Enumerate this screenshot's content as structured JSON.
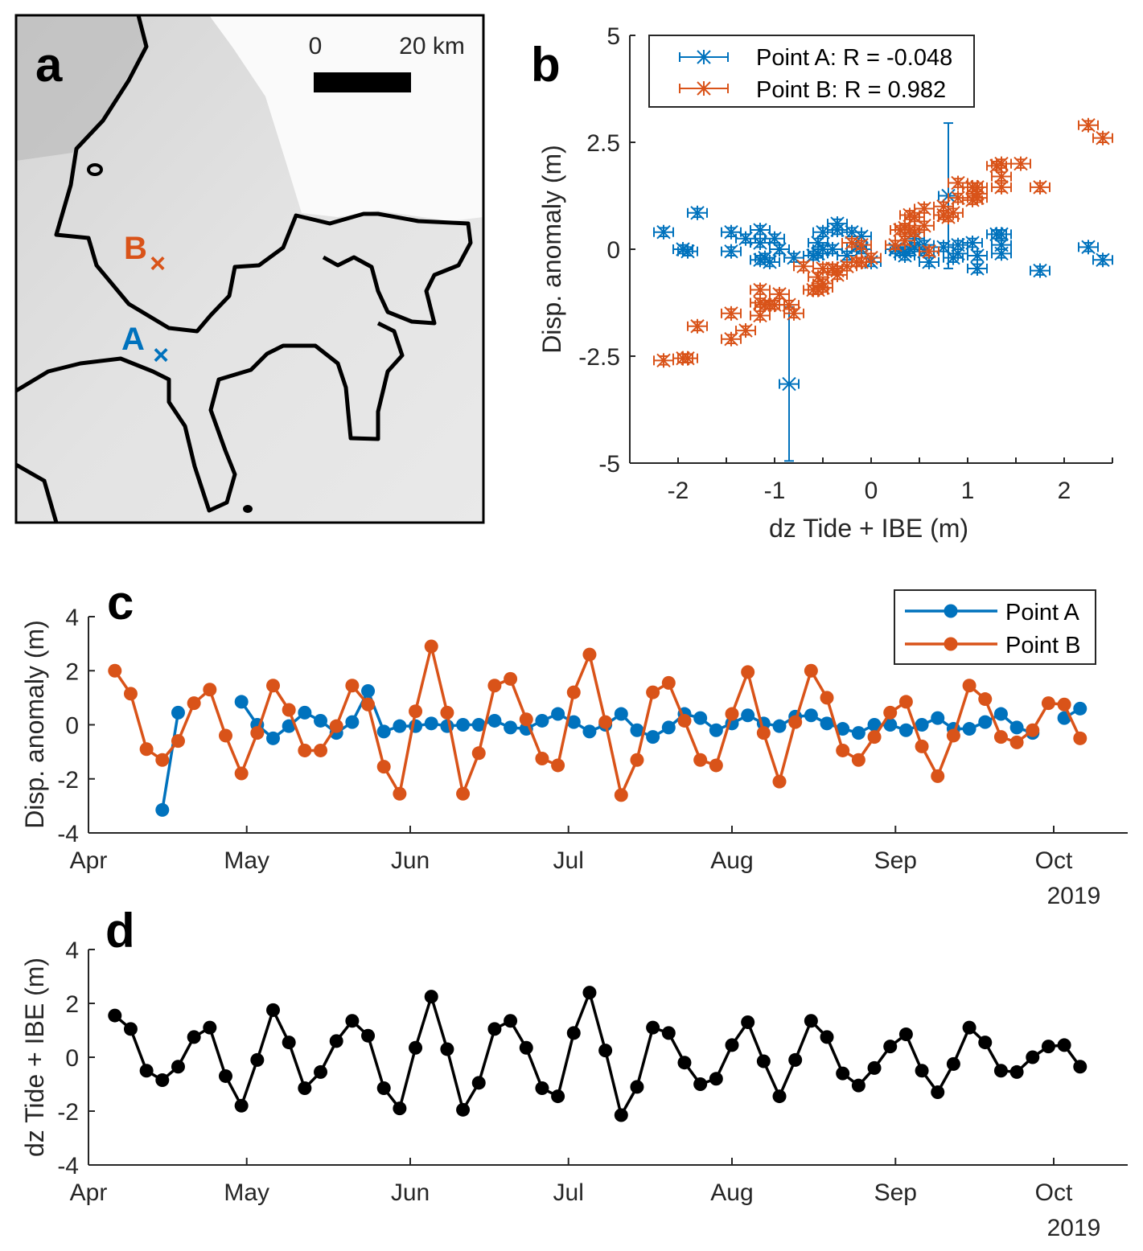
{
  "colors": {
    "point_a": "#0072BD",
    "point_b": "#D95319",
    "tide": "#000000",
    "axis": "#262626"
  },
  "panel_a": {
    "label": "a",
    "scale_bar": {
      "start": "0",
      "end": "20 km"
    },
    "markers": [
      {
        "label": "B",
        "color": "#D95319"
      },
      {
        "label": "A",
        "color": "#0072BD"
      }
    ]
  },
  "chart_data": [
    {
      "panel": "b",
      "type": "scatter",
      "xlabel": "dz Tide + IBE (m)",
      "ylabel": "Disp. anomaly (m)",
      "xlim": [
        -2.5,
        2.5
      ],
      "ylim": [
        -5,
        5
      ],
      "xticks": [
        -2,
        -1,
        0,
        1,
        2
      ],
      "xtick_labels": [
        "-2",
        "-1",
        "0",
        "1",
        "2"
      ],
      "yticks": [
        5,
        2.5,
        0,
        -2.5,
        -5
      ],
      "ytick_labels": [
        "5",
        "2.5",
        "0",
        "-2.5",
        "-5"
      ],
      "legend": "top-left",
      "error_bars": {
        "x": 0.1,
        "y": 0.1,
        "large_y": [
          {
            "series": 0,
            "index": 3,
            "y": 1.8
          },
          {
            "series": 0,
            "index": 16,
            "y": 1.7
          }
        ]
      },
      "x": [
        1.55,
        1.05,
        -0.5,
        -0.85,
        -0.35,
        0.75,
        1.1,
        -0.7,
        -1.8,
        -0.1,
        1.75,
        0.55,
        -1.15,
        -0.55,
        0.6,
        1.35,
        0.8,
        -1.15,
        -1.9,
        0.35,
        2.25,
        0.3,
        -1.95,
        -0.95,
        1.05,
        1.35,
        0.35,
        -1.15,
        -1.45,
        0.9,
        2.4,
        0.25,
        -2.15,
        -1.1,
        1.1,
        0.9,
        -0.2,
        -1.0,
        -0.8,
        0.45,
        1.3,
        -0.15,
        -1.45,
        -0.1,
        1.35,
        0.75,
        -0.6,
        -1.05,
        -0.4,
        0.4,
        0.85,
        -0.5,
        -1.3,
        -0.25,
        1.1,
        0.55,
        -0.5,
        -0.55,
        0.0,
        0.4,
        0.45,
        -0.35
      ],
      "series": [
        {
          "name": "Point A: R = -0.048",
          "color": "#0072BD",
          "y": [
            null,
            null,
            null,
            -3.15,
            0.45,
            null,
            null,
            null,
            0.85,
            0.0,
            -0.5,
            -0.05,
            0.45,
            0.15,
            -0.3,
            0.1,
            1.25,
            -0.25,
            -0.05,
            -0.05,
            0.05,
            -0.05,
            0.0,
            0.0,
            0.15,
            -0.1,
            -0.15,
            0.15,
            0.4,
            0.1,
            -0.25,
            0.0,
            0.4,
            -0.2,
            -0.45,
            -0.1,
            0.4,
            0.25,
            -0.2,
            0.05,
            0.35,
            0.05,
            -0.05,
            0.3,
            0.35,
            0.05,
            -0.15,
            -0.3,
            0.0,
            0.0,
            -0.2,
            0.0,
            0.25,
            -0.15,
            -0.15,
            0.1,
            0.4,
            -0.1,
            -0.3,
            null,
            0.25,
            0.6
          ]
        },
        {
          "name": "Point B: R = 0.982",
          "color": "#D95319",
          "y": [
            2.0,
            1.15,
            -0.9,
            -1.3,
            -0.6,
            0.8,
            1.3,
            -0.4,
            -1.8,
            -0.3,
            1.45,
            0.55,
            -0.95,
            -0.95,
            -0.05,
            1.45,
            0.75,
            -1.55,
            -2.55,
            0.5,
            2.9,
            0.45,
            -2.55,
            -1.05,
            1.45,
            1.7,
            0.2,
            -1.25,
            -1.5,
            1.2,
            2.6,
            0.1,
            -2.6,
            -1.3,
            1.2,
            1.55,
            0.15,
            -1.3,
            -1.5,
            0.4,
            1.95,
            -0.3,
            -2.1,
            0.1,
            2.0,
            1.0,
            -0.95,
            -1.3,
            -0.45,
            0.45,
            0.85,
            -0.8,
            -1.9,
            -0.4,
            1.45,
            0.95,
            -0.45,
            -0.65,
            -0.2,
            0.8,
            0.75,
            -0.5
          ]
        }
      ]
    },
    {
      "panel": "c",
      "type": "line",
      "ylabel": "Disp. anomaly (m)",
      "ylim": [
        -4,
        4
      ],
      "yticks": [
        4,
        2,
        0,
        -2,
        -4
      ],
      "ytick_labels": [
        "4",
        "2",
        "0",
        "-2",
        "-4"
      ],
      "xticks": [
        "2019-04-01",
        "2019-05-01",
        "2019-06-01",
        "2019-07-01",
        "2019-08-01",
        "2019-09-01",
        "2019-10-01"
      ],
      "xtick_labels": [
        "Apr",
        "May",
        "Jun",
        "Jul",
        "Aug",
        "Sep",
        "Oct"
      ],
      "year_label": "2019",
      "legend": "top-right",
      "x": [
        "2019-04-06",
        "2019-04-09",
        "2019-04-12",
        "2019-04-15",
        "2019-04-18",
        "2019-04-21",
        "2019-04-24",
        "2019-04-27",
        "2019-04-30",
        "2019-05-03",
        "2019-05-06",
        "2019-05-09",
        "2019-05-12",
        "2019-05-15",
        "2019-05-18",
        "2019-05-21",
        "2019-05-24",
        "2019-05-27",
        "2019-05-30",
        "2019-06-02",
        "2019-06-05",
        "2019-06-08",
        "2019-06-11",
        "2019-06-14",
        "2019-06-17",
        "2019-06-20",
        "2019-06-23",
        "2019-06-26",
        "2019-06-29",
        "2019-07-02",
        "2019-07-05",
        "2019-07-08",
        "2019-07-11",
        "2019-07-14",
        "2019-07-17",
        "2019-07-20",
        "2019-07-23",
        "2019-07-26",
        "2019-07-29",
        "2019-08-01",
        "2019-08-04",
        "2019-08-07",
        "2019-08-10",
        "2019-08-13",
        "2019-08-16",
        "2019-08-19",
        "2019-08-22",
        "2019-08-25",
        "2019-08-28",
        "2019-08-31",
        "2019-09-03",
        "2019-09-06",
        "2019-09-09",
        "2019-09-12",
        "2019-09-15",
        "2019-09-18",
        "2019-09-21",
        "2019-09-24",
        "2019-09-27",
        "2019-09-30",
        "2019-10-03",
        "2019-10-06"
      ],
      "series": [
        {
          "name": "Point A",
          "color": "#0072BD",
          "values": [
            null,
            null,
            null,
            -3.15,
            0.45,
            null,
            null,
            null,
            0.85,
            0.0,
            -0.5,
            -0.05,
            0.45,
            0.15,
            -0.3,
            0.1,
            1.25,
            -0.25,
            -0.05,
            -0.05,
            0.05,
            -0.05,
            0.0,
            0.0,
            0.15,
            -0.1,
            -0.15,
            0.15,
            0.4,
            0.1,
            -0.25,
            0.0,
            0.4,
            -0.2,
            -0.45,
            -0.1,
            0.4,
            0.25,
            -0.2,
            0.05,
            0.35,
            0.05,
            -0.05,
            0.3,
            0.35,
            0.05,
            -0.15,
            -0.3,
            0.0,
            0.0,
            -0.2,
            0.0,
            0.25,
            -0.15,
            -0.15,
            0.1,
            0.4,
            -0.1,
            -0.3,
            null,
            0.25,
            0.6
          ]
        },
        {
          "name": "Point B",
          "color": "#D95319",
          "values": [
            2.0,
            1.15,
            -0.9,
            -1.3,
            -0.6,
            0.8,
            1.3,
            -0.4,
            -1.8,
            -0.3,
            1.45,
            0.55,
            -0.95,
            -0.95,
            -0.05,
            1.45,
            0.75,
            -1.55,
            -2.55,
            0.5,
            2.9,
            0.45,
            -2.55,
            -1.05,
            1.45,
            1.7,
            0.2,
            -1.25,
            -1.5,
            1.2,
            2.6,
            0.1,
            -2.6,
            -1.3,
            1.2,
            1.55,
            0.15,
            -1.3,
            -1.5,
            0.4,
            1.95,
            -0.3,
            -2.1,
            0.1,
            2.0,
            1.0,
            -0.95,
            -1.3,
            -0.45,
            0.45,
            0.85,
            -0.8,
            -1.9,
            -0.4,
            1.45,
            0.95,
            -0.45,
            -0.65,
            -0.2,
            0.8,
            0.75,
            -0.5
          ]
        }
      ]
    },
    {
      "panel": "d",
      "type": "line",
      "ylabel": "dz Tide + IBE (m)",
      "ylim": [
        -4,
        4
      ],
      "yticks": [
        4,
        2,
        0,
        -2,
        -4
      ],
      "ytick_labels": [
        "4",
        "2",
        "0",
        "-2",
        "-4"
      ],
      "xticks": [
        "2019-04-01",
        "2019-05-01",
        "2019-06-01",
        "2019-07-01",
        "2019-08-01",
        "2019-09-01",
        "2019-10-01"
      ],
      "xtick_labels": [
        "Apr",
        "May",
        "Jun",
        "Jul",
        "Aug",
        "Sep",
        "Oct"
      ],
      "year_label": "2019",
      "x": [
        "2019-04-06",
        "2019-04-09",
        "2019-04-12",
        "2019-04-15",
        "2019-04-18",
        "2019-04-21",
        "2019-04-24",
        "2019-04-27",
        "2019-04-30",
        "2019-05-03",
        "2019-05-06",
        "2019-05-09",
        "2019-05-12",
        "2019-05-15",
        "2019-05-18",
        "2019-05-21",
        "2019-05-24",
        "2019-05-27",
        "2019-05-30",
        "2019-06-02",
        "2019-06-05",
        "2019-06-08",
        "2019-06-11",
        "2019-06-14",
        "2019-06-17",
        "2019-06-20",
        "2019-06-23",
        "2019-06-26",
        "2019-06-29",
        "2019-07-02",
        "2019-07-05",
        "2019-07-08",
        "2019-07-11",
        "2019-07-14",
        "2019-07-17",
        "2019-07-20",
        "2019-07-23",
        "2019-07-26",
        "2019-07-29",
        "2019-08-01",
        "2019-08-04",
        "2019-08-07",
        "2019-08-10",
        "2019-08-13",
        "2019-08-16",
        "2019-08-19",
        "2019-08-22",
        "2019-08-25",
        "2019-08-28",
        "2019-08-31",
        "2019-09-03",
        "2019-09-06",
        "2019-09-09",
        "2019-09-12",
        "2019-09-15",
        "2019-09-18",
        "2019-09-21",
        "2019-09-24",
        "2019-09-27",
        "2019-09-30",
        "2019-10-03",
        "2019-10-06"
      ],
      "series": [
        {
          "color": "#000000",
          "values": [
            1.55,
            1.05,
            -0.5,
            -0.85,
            -0.35,
            0.75,
            1.1,
            -0.7,
            -1.8,
            -0.1,
            1.75,
            0.55,
            -1.15,
            -0.55,
            0.6,
            1.35,
            0.8,
            -1.15,
            -1.9,
            0.35,
            2.25,
            0.3,
            -1.95,
            -0.95,
            1.05,
            1.35,
            0.35,
            -1.15,
            -1.45,
            0.9,
            2.4,
            0.25,
            -2.15,
            -1.1,
            1.1,
            0.9,
            -0.2,
            -1.0,
            -0.8,
            0.45,
            1.3,
            -0.15,
            -1.45,
            -0.1,
            1.35,
            0.75,
            -0.6,
            -1.05,
            -0.4,
            0.4,
            0.85,
            -0.5,
            -1.3,
            -0.25,
            1.1,
            0.55,
            -0.5,
            -0.55,
            0.0,
            0.4,
            0.45,
            -0.35
          ]
        }
      ]
    }
  ]
}
